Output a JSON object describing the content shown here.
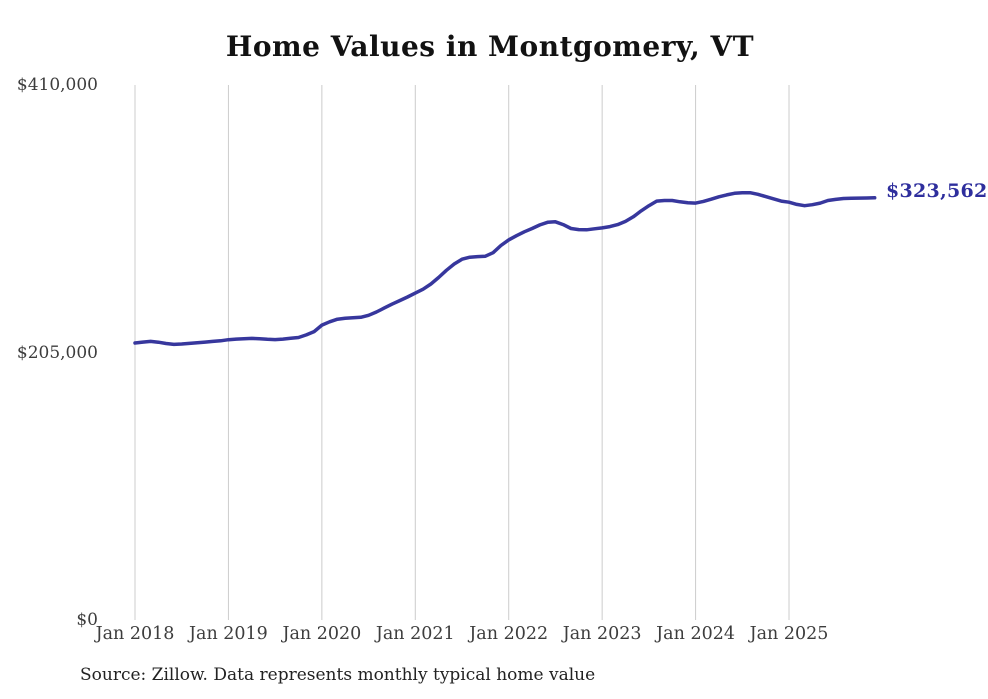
{
  "chart_data": {
    "type": "line",
    "title": "Home Values in Montgomery, VT",
    "end_label": "$323,562",
    "last_value": 323562,
    "source": "Source: Zillow. Data represents monthly typical home value",
    "line_color": "#37379d",
    "label_color": "#2e2e9d",
    "grid_color": "#cccccc",
    "grid": "vertical-only",
    "legend_position": "none",
    "ylim": [
      0,
      410000
    ],
    "y_ticks": [
      {
        "label": "$0",
        "value": 0
      },
      {
        "label": "$205,000",
        "value": 205000
      },
      {
        "label": "$410,000",
        "value": 410000
      }
    ],
    "x_tick_labels": [
      "Jan 2018",
      "Jan 2019",
      "Jan 2020",
      "Jan 2021",
      "Jan 2022",
      "Jan 2023",
      "Jan 2024",
      "Jan 2025"
    ],
    "series": [
      {
        "name": "Monthly typical home value",
        "start_month": "2018-01",
        "end_month": "2025-12",
        "values": [
          212300,
          213000,
          213500,
          212900,
          211900,
          211200,
          211500,
          212000,
          212500,
          213000,
          213500,
          214000,
          214800,
          215300,
          215600,
          215800,
          215500,
          215100,
          214900,
          215300,
          215900,
          216500,
          218500,
          221000,
          226000,
          228500,
          230500,
          231200,
          231600,
          232000,
          233500,
          236000,
          239000,
          242000,
          244800,
          247500,
          250500,
          253500,
          257500,
          262500,
          268000,
          272800,
          276500,
          278000,
          278500,
          278800,
          281500,
          287000,
          291300,
          294500,
          297500,
          300000,
          302800,
          304800,
          305200,
          303000,
          300000,
          299200,
          299000,
          299800,
          300500,
          301500,
          303000,
          305500,
          309000,
          313500,
          317500,
          321000,
          321500,
          321500,
          320500,
          319800,
          319500,
          320800,
          322500,
          324300,
          325800,
          327000,
          327400,
          327500,
          326200,
          324500,
          322800,
          321000,
          320200,
          318500,
          317500,
          318300,
          319500,
          321500,
          322300,
          323000,
          323200,
          323300,
          323400,
          323562
        ]
      }
    ]
  }
}
